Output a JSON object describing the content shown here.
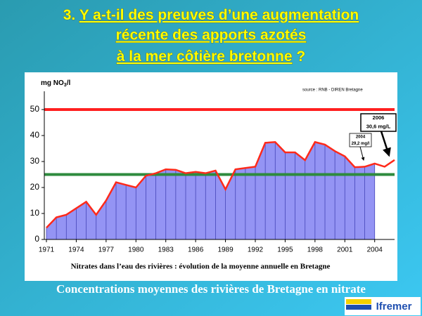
{
  "slide": {
    "title_number": "3.",
    "title_lines": [
      "Y a-t-il des preuves d’une augmentation",
      "récente des apports azotés",
      "à la mer côtière bretonne"
    ],
    "title_end": "?",
    "caption": "Concentrations moyennes des rivières de Bretagne en nitrate",
    "logo": "Ifremer"
  },
  "chart_data": {
    "type": "area-line",
    "y_label": [
      "mg NO",
      "3",
      "/l"
    ],
    "source": "source : RNB - DIREN Bretagne",
    "subtitle": "Nitrates dans l’eau des rivières : évolution de la moyenne annuelle en Bretagne",
    "x": [
      1971,
      1972,
      1973,
      1974,
      1975,
      1976,
      1977,
      1978,
      1979,
      1980,
      1981,
      1982,
      1983,
      1984,
      1985,
      1986,
      1987,
      1988,
      1989,
      1990,
      1991,
      1992,
      1993,
      1994,
      1995,
      1996,
      1997,
      1998,
      1999,
      2000,
      2001,
      2002,
      2003,
      2004,
      2005,
      2006
    ],
    "values": [
      4.5,
      8.5,
      9.5,
      12,
      14.5,
      9.5,
      15,
      22,
      21,
      20,
      24.5,
      25.5,
      27,
      26.8,
      25.5,
      26,
      25.5,
      26.5,
      19.3,
      27,
      27.5,
      28,
      37.2,
      37.5,
      33.5,
      33.5,
      30.5,
      37.5,
      36.5,
      34,
      32,
      27.8,
      28,
      29.2,
      28,
      30.6
    ],
    "line_color": "#ff2a1a",
    "fill_color": "#9494f4",
    "area_end": 2004,
    "xlim": [
      1971,
      2006
    ],
    "xticks": [
      1971,
      1974,
      1977,
      1980,
      1983,
      1986,
      1989,
      1992,
      1995,
      1998,
      2001,
      2004
    ],
    "ylim": [
      0,
      50
    ],
    "yticks": [
      0,
      10,
      20,
      30,
      40,
      50
    ],
    "hlines": [
      {
        "value": 50,
        "color": "#ff2020"
      },
      {
        "value": 25,
        "color": "#2e8b3e"
      }
    ],
    "annotations": [
      {
        "lines": [
          "2004",
          "29,2 mg/l"
        ]
      },
      {
        "lines": [
          "2006",
          "30,6 mg/L"
        ]
      }
    ]
  }
}
